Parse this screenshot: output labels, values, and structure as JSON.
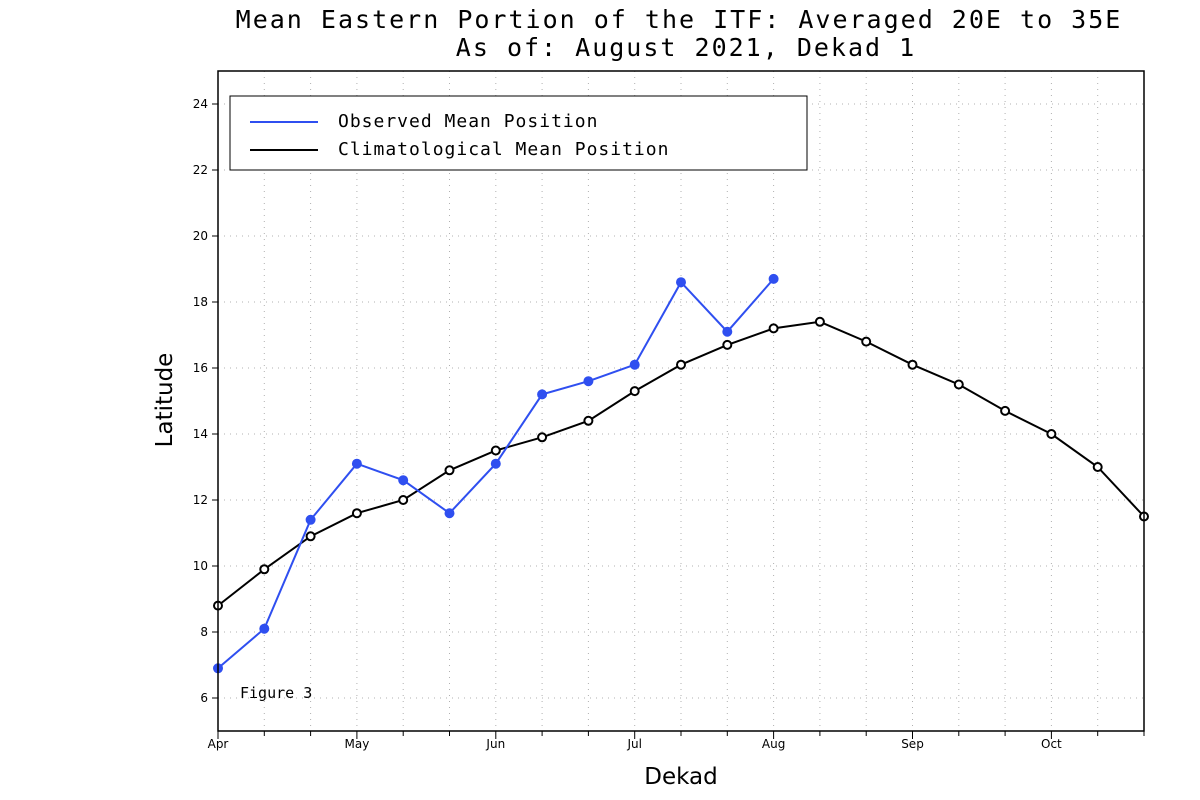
{
  "chart_data": {
    "type": "line",
    "title": "Mean Eastern Portion of the ITF: Averaged 20E to 35E",
    "subtitle": "As of: August 2021, Dekad 1",
    "xlabel": "Dekad",
    "ylabel": "Latitude",
    "x_tick_labels": [
      "Apr",
      "May",
      "Jun",
      "Jul",
      "Aug",
      "Sep",
      "Oct"
    ],
    "x_month_dekad_index": [
      0,
      3,
      6,
      9,
      12,
      15,
      18
    ],
    "xlim": [
      0,
      20
    ],
    "ylim": [
      5,
      25
    ],
    "y_ticks": [
      6,
      8,
      10,
      12,
      14,
      16,
      18,
      20,
      22,
      24
    ],
    "grid": true,
    "legend_position": "top-left",
    "annotation": "Figure 3",
    "series": [
      {
        "name": "Observed Mean Position",
        "color": "#2f4ff0",
        "marker": "filled-circle",
        "x": [
          0,
          1,
          2,
          3,
          4,
          5,
          6,
          7,
          8,
          9,
          10,
          11,
          12
        ],
        "values": [
          6.9,
          8.1,
          11.4,
          13.1,
          12.6,
          11.6,
          13.1,
          15.2,
          15.6,
          16.1,
          18.6,
          17.1,
          18.7
        ]
      },
      {
        "name": "Climatological Mean Position",
        "color": "#000000",
        "marker": "open-circle",
        "x": [
          0,
          1,
          2,
          3,
          4,
          5,
          6,
          7,
          8,
          9,
          10,
          11,
          12,
          13,
          14,
          15,
          16,
          17,
          18,
          19,
          20
        ],
        "values": [
          8.8,
          9.9,
          10.9,
          11.6,
          12.0,
          12.9,
          13.5,
          13.9,
          14.4,
          15.3,
          16.1,
          16.7,
          17.2,
          17.4,
          16.8,
          16.1,
          15.5,
          14.7,
          14.0,
          13.0,
          11.5
        ]
      }
    ]
  }
}
